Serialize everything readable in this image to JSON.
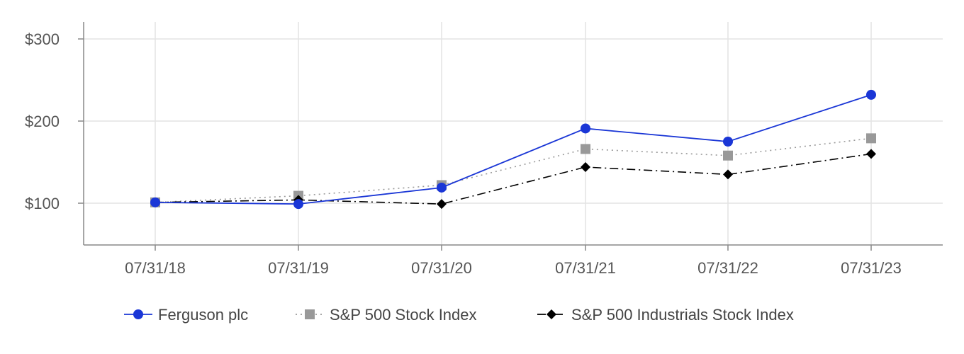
{
  "chart_data": {
    "type": "line",
    "categories": [
      "07/31/18",
      "07/31/19",
      "07/31/20",
      "07/31/21",
      "07/31/22",
      "07/31/23"
    ],
    "ylim": [
      50,
      320
    ],
    "yticks": [
      100,
      200,
      300
    ],
    "ytick_labels": [
      "$100",
      "$200",
      "$300"
    ],
    "grid": true,
    "legend_position": "bottom",
    "series": [
      {
        "name": "Ferguson plc",
        "values": [
          101,
          99,
          119,
          191,
          175,
          232
        ],
        "color": "#1a36d6",
        "marker": "circle",
        "line_style": "solid"
      },
      {
        "name": "S&P 500 Stock Index",
        "values": [
          101,
          109,
          122,
          166,
          158,
          179
        ],
        "color": "#999999",
        "marker": "square",
        "line_style": "dotted"
      },
      {
        "name": "S&P 500 Industrials Stock Index",
        "values": [
          101,
          104,
          99,
          144,
          135,
          160
        ],
        "color": "#000000",
        "marker": "diamond",
        "line_style": "dash-dot"
      }
    ]
  }
}
